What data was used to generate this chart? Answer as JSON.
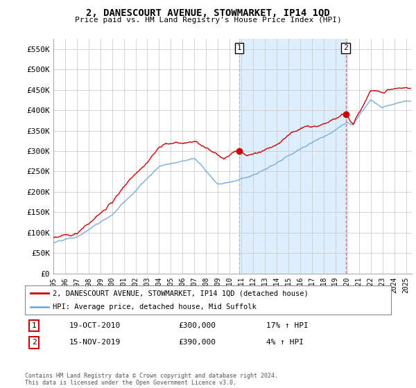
{
  "title": "2, DANESCOURT AVENUE, STOWMARKET, IP14 1QD",
  "subtitle": "Price paid vs. HM Land Registry's House Price Index (HPI)",
  "ylabel_ticks": [
    "£0",
    "£50K",
    "£100K",
    "£150K",
    "£200K",
    "£250K",
    "£300K",
    "£350K",
    "£400K",
    "£450K",
    "£500K",
    "£550K"
  ],
  "ytick_vals": [
    0,
    50000,
    100000,
    150000,
    200000,
    250000,
    300000,
    350000,
    400000,
    450000,
    500000,
    550000
  ],
  "ylim": [
    0,
    575000
  ],
  "xlim_start": 1995.0,
  "xlim_end": 2025.5,
  "legend_line1": "2, DANESCOURT AVENUE, STOWMARKET, IP14 1QD (detached house)",
  "legend_line2": "HPI: Average price, detached house, Mid Suffolk",
  "sale1_date": "19-OCT-2010",
  "sale1_price": "£300,000",
  "sale1_hpi": "17% ↑ HPI",
  "sale2_date": "15-NOV-2019",
  "sale2_price": "£390,000",
  "sale2_hpi": "4% ↑ HPI",
  "footer": "Contains HM Land Registry data © Crown copyright and database right 2024.\nThis data is licensed under the Open Government Licence v3.0.",
  "red_color": "#cc0000",
  "blue_color": "#7aabdc",
  "shade_color": "#ddeeff",
  "grid_color": "#cccccc",
  "background_color": "#ffffff",
  "sale1_x": 2010.8,
  "sale1_y": 300000,
  "sale2_x": 2019.87,
  "sale2_y": 390000,
  "vline1_color": "#aabbcc",
  "vline2_color": "#cc6666"
}
